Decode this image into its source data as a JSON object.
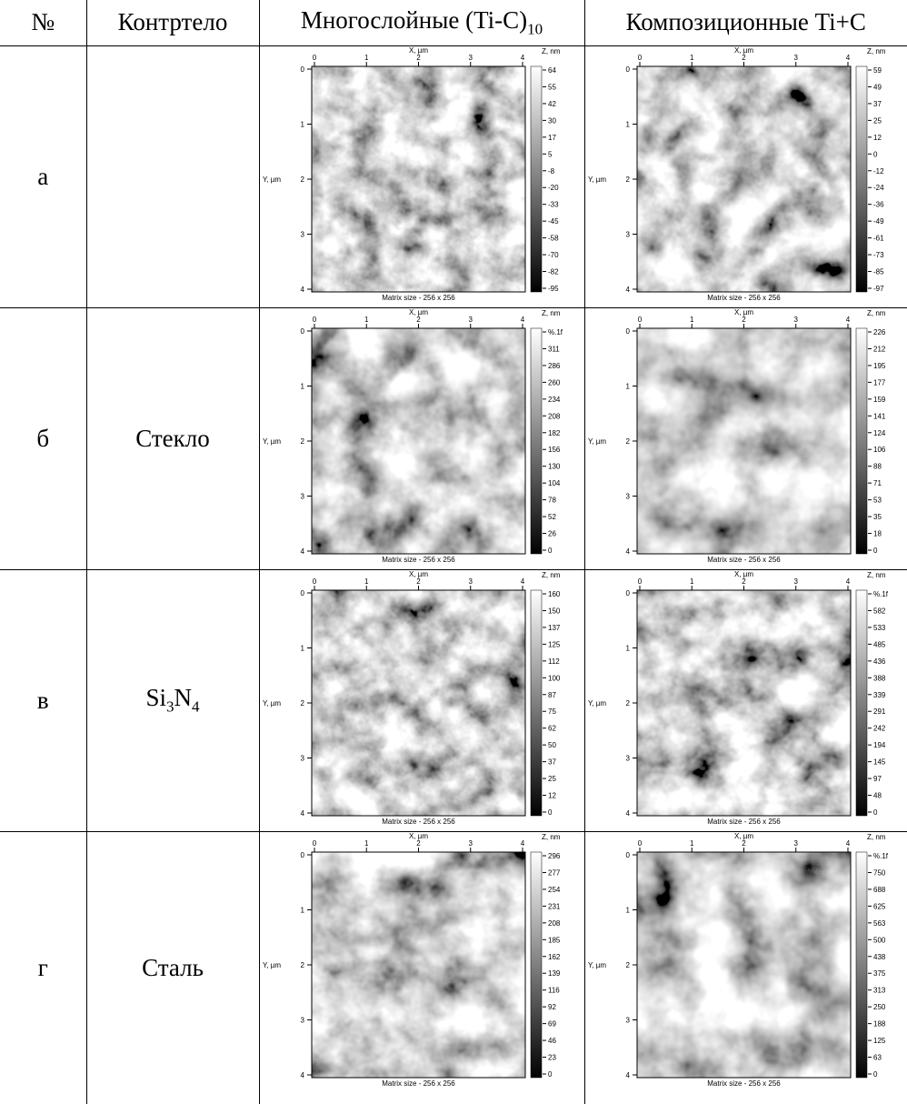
{
  "header": {
    "number": "№",
    "counterbody": "Контртело",
    "multilayer": {
      "text": "Многослойные (Ti-C)",
      "sub": "10"
    },
    "composite": "Композиционные Ti+C"
  },
  "rows": [
    {
      "label": "а",
      "counterbody": {
        "parts": []
      },
      "multilayer": {
        "x_label": "X, µm",
        "y_label": "Y, µm",
        "z_label": "Z, nm",
        "x_ticks": [
          "0",
          "1",
          "2",
          "3",
          "4"
        ],
        "y_ticks": [
          "0",
          "1",
          "2",
          "3",
          "4"
        ],
        "z_ticks": [
          "64",
          "55",
          "42",
          "30",
          "17",
          "5",
          "-8",
          "-20",
          "-33",
          "-45",
          "-58",
          "-70",
          "-82",
          "-95"
        ],
        "caption": "Matrix size - 256 x 256"
      },
      "composite": {
        "x_label": "X, µm",
        "y_label": "Y, µm",
        "z_label": "Z, nm",
        "x_ticks": [
          "0",
          "1",
          "2",
          "3",
          "4"
        ],
        "y_ticks": [
          "0",
          "1",
          "2",
          "3",
          "4"
        ],
        "z_ticks": [
          "59",
          "49",
          "37",
          "25",
          "12",
          "0",
          "-12",
          "-24",
          "-36",
          "-49",
          "-61",
          "-73",
          "-85",
          "-97"
        ],
        "caption": "Matrix size - 256 x 256"
      }
    },
    {
      "label": "б",
      "counterbody": {
        "parts": [
          "Стекло"
        ]
      },
      "multilayer": {
        "x_label": "X, µm",
        "y_label": "Y, µm",
        "z_label": "Z, nm",
        "x_ticks": [
          "0",
          "1",
          "2",
          "3",
          "4"
        ],
        "y_ticks": [
          "0",
          "1",
          "2",
          "3",
          "4"
        ],
        "z_ticks": [
          "%.1f",
          "311",
          "286",
          "260",
          "234",
          "208",
          "182",
          "156",
          "130",
          "104",
          "78",
          "52",
          "26",
          "0"
        ],
        "caption": "Matrix size - 256 x 256"
      },
      "composite": {
        "x_label": "X, µm",
        "y_label": "Y, µm",
        "z_label": "Z, nm",
        "x_ticks": [
          "0",
          "1",
          "2",
          "3",
          "4"
        ],
        "y_ticks": [
          "0",
          "1",
          "2",
          "3",
          "4"
        ],
        "z_ticks": [
          "226",
          "212",
          "195",
          "177",
          "159",
          "141",
          "124",
          "106",
          "88",
          "71",
          "53",
          "35",
          "18",
          "0"
        ],
        "caption": "Matrix size - 256 x 256"
      }
    },
    {
      "label": "в",
      "counterbody": {
        "parts": [
          "Si",
          "3",
          "N",
          "4"
        ]
      },
      "multilayer": {
        "x_label": "X, µm",
        "y_label": "Y, µm",
        "z_label": "Z, nm",
        "x_ticks": [
          "0",
          "1",
          "2",
          "3",
          "4"
        ],
        "y_ticks": [
          "0",
          "1",
          "2",
          "3",
          "4"
        ],
        "z_ticks": [
          "160",
          "150",
          "137",
          "125",
          "112",
          "100",
          "87",
          "75",
          "62",
          "50",
          "37",
          "25",
          "12",
          "0"
        ],
        "caption": "Matrix size - 256 x 256"
      },
      "composite": {
        "x_label": "X, µm",
        "y_label": "Y, µm",
        "z_label": "Z, nm",
        "x_ticks": [
          "0",
          "1",
          "2",
          "3",
          "4"
        ],
        "y_ticks": [
          "0",
          "1",
          "2",
          "3",
          "4"
        ],
        "z_ticks": [
          "%.1f",
          "582",
          "533",
          "485",
          "436",
          "388",
          "339",
          "291",
          "242",
          "194",
          "145",
          "97",
          "48",
          "0"
        ],
        "caption": "Matrix size - 256 x 256"
      }
    },
    {
      "label": "г",
      "counterbody": {
        "parts": [
          "Сталь"
        ]
      },
      "multilayer": {
        "x_label": "X, µm",
        "y_label": "Y, µm",
        "z_label": "Z, nm",
        "x_ticks": [
          "0",
          "1",
          "2",
          "3",
          "4"
        ],
        "y_ticks": [
          "0",
          "1",
          "2",
          "3",
          "4"
        ],
        "z_ticks": [
          "296",
          "277",
          "254",
          "231",
          "208",
          "185",
          "162",
          "139",
          "116",
          "92",
          "69",
          "46",
          "23",
          "0"
        ],
        "caption": "Matrix size - 256 x 256"
      },
      "composite": {
        "x_label": "X, µm",
        "y_label": "Y, µm",
        "z_label": "Z, nm",
        "x_ticks": [
          "0",
          "1",
          "2",
          "3",
          "4"
        ],
        "y_ticks": [
          "0",
          "1",
          "2",
          "3",
          "4"
        ],
        "z_ticks": [
          "%.1f",
          "750",
          "688",
          "625",
          "563",
          "500",
          "438",
          "375",
          "313",
          "250",
          "188",
          "125",
          "63",
          "0"
        ],
        "caption": "Matrix size - 256 x 256"
      }
    }
  ]
}
